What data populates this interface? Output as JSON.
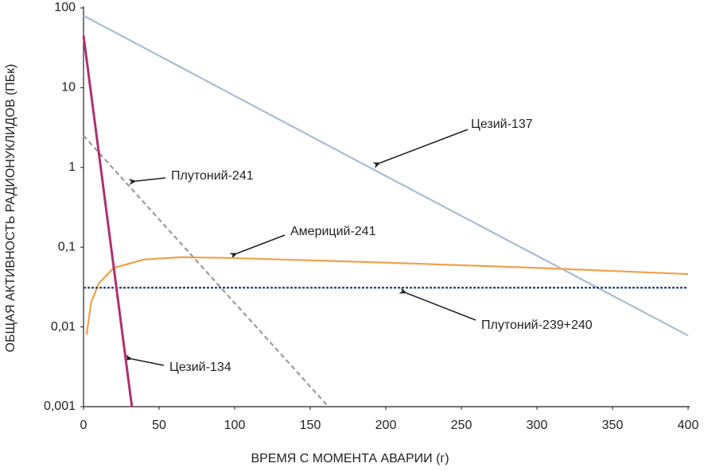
{
  "chart_data": {
    "type": "line",
    "xlabel": "ВРЕМЯ С МОМЕНТА АВАРИИ (г)",
    "ylabel": "ОБЩАЯ АКТИВНОСТЬ РАДИОНУКЛИДОВ (ПБк)",
    "xlim": [
      0,
      400
    ],
    "xticks": [
      0,
      50,
      100,
      150,
      200,
      250,
      300,
      350,
      400
    ],
    "ylim": [
      0.001,
      100
    ],
    "ylog": true,
    "yticks": [
      {
        "value": 0.001,
        "label": "0,001"
      },
      {
        "value": 0.01,
        "label": "0,01"
      },
      {
        "value": 0.1,
        "label": "0,1"
      },
      1,
      10,
      100
    ],
    "series": [
      {
        "name": "Цезий-137",
        "color": "#a9bcd8",
        "dash": "solid",
        "x": [
          0,
          100,
          200,
          300,
          400
        ],
        "values": [
          80,
          7.9,
          0.78,
          0.078,
          0.0078
        ]
      },
      {
        "name": "Плутоний-241",
        "color": "#9b9b9b",
        "dash": "dashed",
        "x": [
          0,
          162
        ],
        "values": [
          2.5,
          0.001
        ]
      },
      {
        "name": "Америций-241",
        "color": "#f0a04b",
        "dash": "solid",
        "x": [
          2,
          5,
          10,
          20,
          40,
          65,
          100,
          200,
          300,
          400
        ],
        "values": [
          0.008,
          0.02,
          0.035,
          0.055,
          0.07,
          0.075,
          0.073,
          0.064,
          0.055,
          0.046
        ]
      },
      {
        "name": "Плутоний-239+240",
        "color": "#1f3f7a",
        "dash": "dotted",
        "x": [
          0,
          400
        ],
        "values": [
          0.031,
          0.031
        ]
      },
      {
        "name": "Цезий-134",
        "color": "#b0306f",
        "dash": "solid",
        "x": [
          0,
          32
        ],
        "values": [
          45,
          0.001
        ]
      }
    ]
  }
}
